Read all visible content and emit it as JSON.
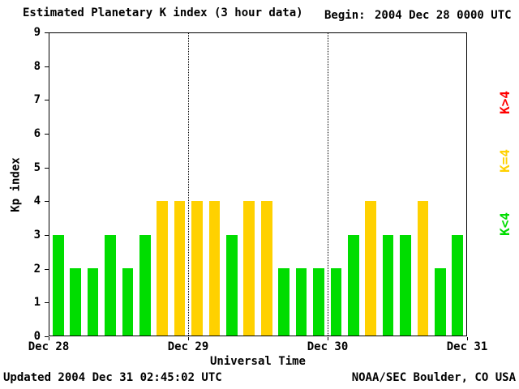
{
  "title": "Estimated Planetary K index (3 hour data)",
  "begin": {
    "label": "Begin:",
    "value": "2004 Dec 28 0000 UTC"
  },
  "axes": {
    "ylabel": "Kp index",
    "xlabel": "Universal Time"
  },
  "legend": [
    {
      "label": "K>4",
      "color": "#ff0000"
    },
    {
      "label": "K=4",
      "color": "#ffd100"
    },
    {
      "label": "K<4",
      "color": "#00dd00"
    }
  ],
  "footer": {
    "left": "Updated 2004 Dec 31 02:45:02 UTC",
    "right": "NOAA/SEC Boulder, CO USA"
  },
  "chart_data": {
    "type": "bar",
    "title": "Estimated Planetary K index (3 hour data)",
    "xlabel": "Universal Time",
    "ylabel": "Kp index",
    "ylim": [
      0,
      9
    ],
    "yticks": [
      0,
      1,
      2,
      3,
      4,
      5,
      6,
      7,
      8,
      9
    ],
    "xticks": [
      "Dec 28",
      "Dec 29",
      "Dec 30",
      "Dec 31"
    ],
    "interval_hours": 3,
    "values": [
      3,
      2,
      2,
      3,
      2,
      3,
      4,
      4,
      4,
      4,
      3,
      4,
      4,
      2,
      2,
      2,
      2,
      3,
      4,
      3,
      3,
      4,
      2,
      3
    ],
    "colors": {
      "low": "#00dd00",
      "mid": "#ffd100",
      "high": "#ff0000"
    },
    "color_rule": "low if K<4, mid if K=4, high if K>4",
    "grid": "dotted vertical lines at interior day boundaries",
    "legend_position": "right"
  }
}
